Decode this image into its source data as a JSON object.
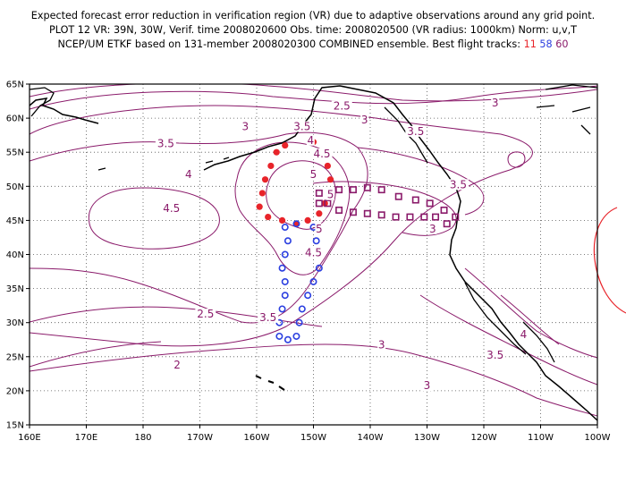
{
  "header": {
    "line1": "Expected forecast error reduction in verification region (VR) due to adaptive observations around any grid point.",
    "line2": "PLOT 12 VR: 39N, 30W, Verif. time 2008020600 Obs. time: 2008020500 (VR radius: 1000km) Norm: u,v,T",
    "line3_prefix": "NCEP/UM ETKF based on 131-member 2008020300 COMBINED ensemble.  Best flight tracks:",
    "track_11": "11",
    "track_58": "58",
    "track_60": "60"
  },
  "map": {
    "lat_labels": [
      "65N",
      "60N",
      "55N",
      "50N",
      "45N",
      "40N",
      "35N",
      "30N",
      "25N",
      "20N",
      "15N"
    ],
    "lon_labels": [
      "160E",
      "170E",
      "180",
      "170W",
      "160W",
      "150W",
      "140W",
      "130W",
      "120W",
      "110W",
      "100W"
    ],
    "contour_labels": [
      {
        "text": "2.5",
        "lon": -145,
        "lat": 61.5
      },
      {
        "text": "3",
        "lon": -141,
        "lat": 59.5
      },
      {
        "text": "3",
        "lon": -162,
        "lat": 58.5
      },
      {
        "text": "3",
        "lon": -118,
        "lat": 62
      },
      {
        "text": "3.5",
        "lon": -152,
        "lat": 58.5
      },
      {
        "text": "3.5",
        "lon": -132,
        "lat": 57.8
      },
      {
        "text": "3.5",
        "lon": -176,
        "lat": 56
      },
      {
        "text": "4",
        "lon": -150.5,
        "lat": 56.5
      },
      {
        "text": "4",
        "lon": -172,
        "lat": 51.5
      },
      {
        "text": "4.5",
        "lon": -148.5,
        "lat": 54.5
      },
      {
        "text": "4.5",
        "lon": -175,
        "lat": 46.5
      },
      {
        "text": "5",
        "lon": -150,
        "lat": 51.5
      },
      {
        "text": "5",
        "lon": -149,
        "lat": 43.5
      },
      {
        "text": "5",
        "lon": -147,
        "lat": 48.5
      },
      {
        "text": "4.5",
        "lon": -150,
        "lat": 40
      },
      {
        "text": "3.5",
        "lon": -124.5,
        "lat": 50
      },
      {
        "text": "3",
        "lon": -129,
        "lat": 43.5
      },
      {
        "text": "3",
        "lon": -138,
        "lat": 26.5
      },
      {
        "text": "3.5",
        "lon": -158,
        "lat": 30.5
      },
      {
        "text": "2.5",
        "lon": -169,
        "lat": 31
      },
      {
        "text": "2",
        "lon": -174,
        "lat": 23.5
      },
      {
        "text": "3",
        "lon": -130,
        "lat": 20.5
      },
      {
        "text": "3.5",
        "lon": -118,
        "lat": 25
      },
      {
        "text": "4",
        "lon": -113,
        "lat": 28
      }
    ],
    "track_11_points": [
      [
        -155,
        56
      ],
      [
        -156.5,
        55
      ],
      [
        -157.5,
        53
      ],
      [
        -158.5,
        51
      ],
      [
        -159,
        49
      ],
      [
        -159.5,
        47
      ],
      [
        -158,
        45.5
      ],
      [
        -155.5,
        45
      ],
      [
        -153,
        44.5
      ],
      [
        -151,
        45
      ],
      [
        -149,
        46
      ],
      [
        -148,
        47.5
      ],
      [
        -147,
        49
      ],
      [
        -147,
        51
      ],
      [
        -147.5,
        53
      ],
      [
        -148.5,
        55
      ],
      [
        -150,
        56.5
      ]
    ],
    "track_58_points": [
      [
        -155,
        44
      ],
      [
        -153,
        44.5
      ],
      [
        -150,
        44
      ],
      [
        -149.5,
        42
      ],
      [
        -149,
        40
      ],
      [
        -149,
        38
      ],
      [
        -150,
        36
      ],
      [
        -151,
        34
      ],
      [
        -152,
        32
      ],
      [
        -152.5,
        30
      ],
      [
        -153,
        28
      ],
      [
        -154.5,
        27.5
      ],
      [
        -156,
        28
      ],
      [
        -156,
        30
      ],
      [
        -155.5,
        32
      ],
      [
        -155,
        34
      ],
      [
        -155,
        36
      ],
      [
        -155.5,
        38
      ],
      [
        -155,
        40
      ],
      [
        -154.5,
        42
      ]
    ],
    "track_60_points": [
      [
        -149,
        47.5
      ],
      [
        -147,
        48.5
      ],
      [
        -145.5,
        49.5
      ],
      [
        -143,
        49.5
      ],
      [
        -140.5,
        49.8
      ],
      [
        -138,
        49.5
      ],
      [
        -135,
        48.5
      ],
      [
        -132,
        48
      ],
      [
        -129.5,
        47.5
      ],
      [
        -127,
        46.5
      ],
      [
        -125,
        45.5
      ],
      [
        -126.5,
        44.5
      ],
      [
        -128.5,
        45.5
      ],
      [
        -130.5,
        45.5
      ],
      [
        -133,
        45.5
      ],
      [
        -135.5,
        45.5
      ],
      [
        -138,
        45.8
      ],
      [
        -140.5,
        46
      ],
      [
        -143,
        46.2
      ],
      [
        -145.5,
        46.5
      ],
      [
        -147.5,
        47.5
      ],
      [
        -149,
        49
      ]
    ],
    "colors": {
      "contour": "#8a1a6a",
      "track_11": "#e8242a",
      "track_58": "#2b3fe0",
      "track_60": "#8a1a6a",
      "vr_circle": "#e8242a",
      "grid": "#555555",
      "coast": "#000000"
    }
  }
}
